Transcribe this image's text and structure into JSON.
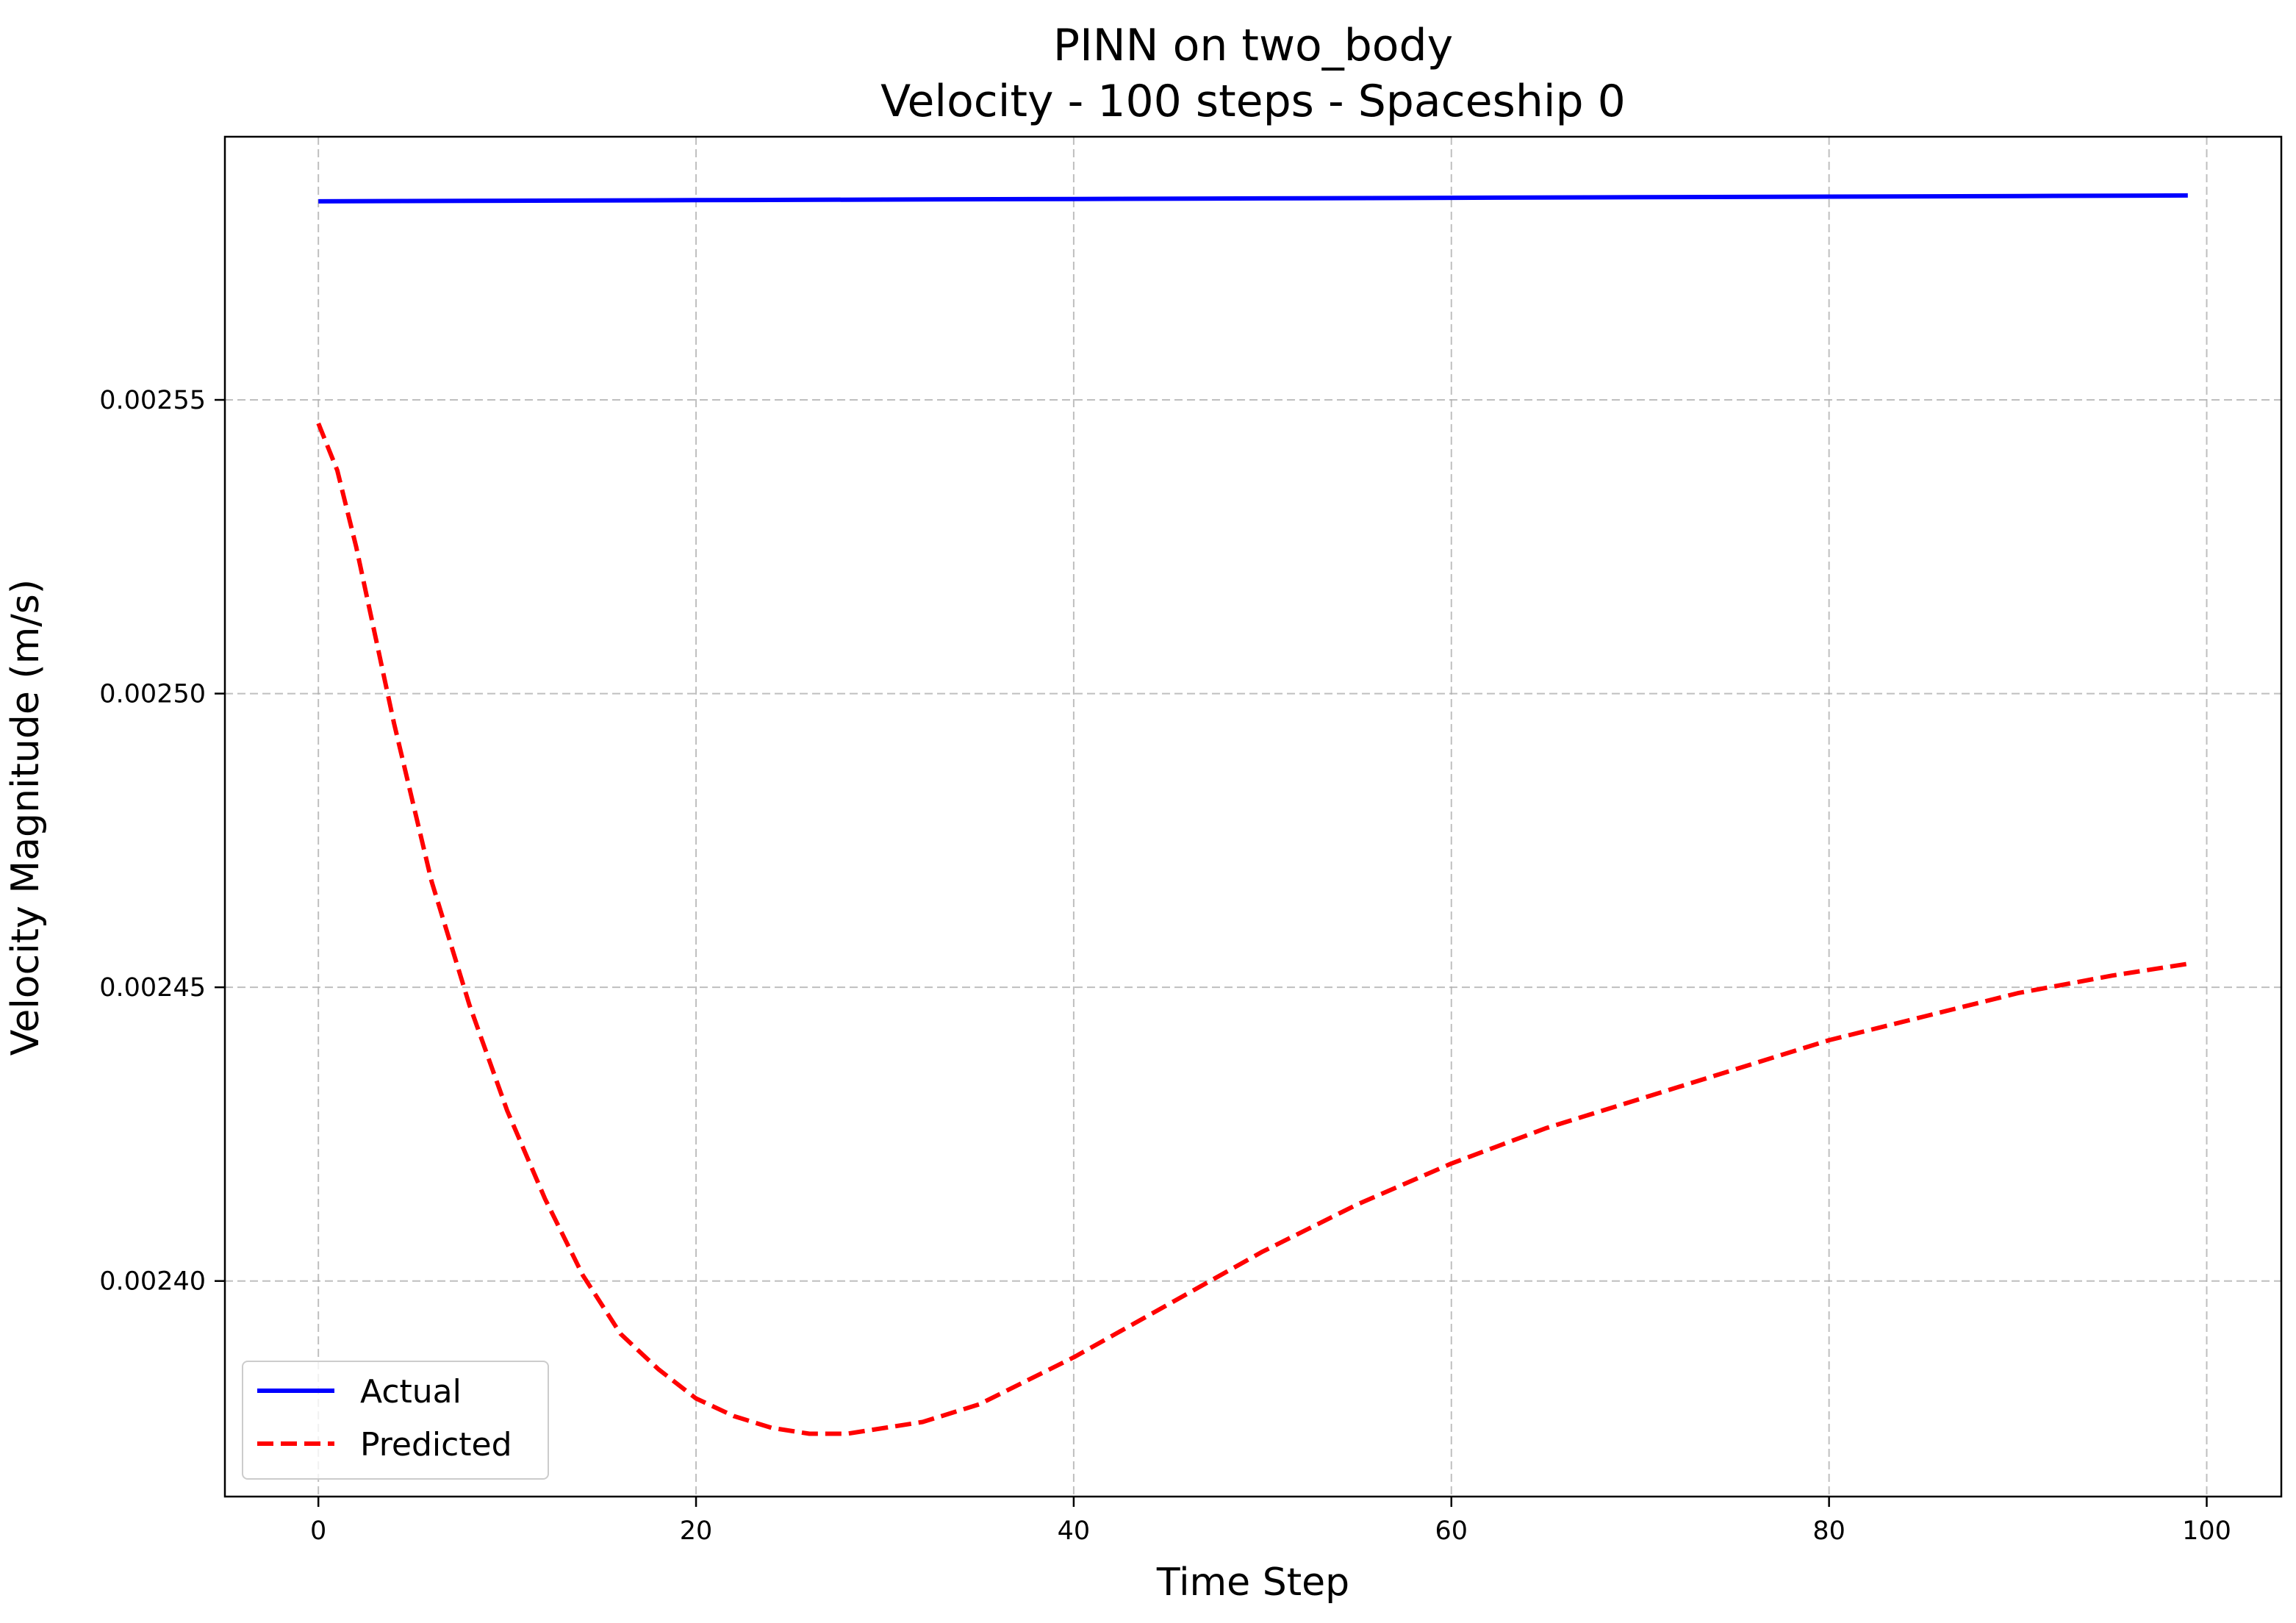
{
  "chart_data": {
    "type": "line",
    "title": "PINN on two_body",
    "subtitle": "Velocity - 100 steps - Spaceship 0",
    "xlabel": "Time Step",
    "ylabel": "Velocity Magnitude (m/s)",
    "xlim": [
      -4.95,
      103.95
    ],
    "ylim": [
      0.0023633,
      0.0025948
    ],
    "xticks": [
      0,
      20,
      40,
      60,
      80,
      100
    ],
    "xtick_labels": [
      "0",
      "20",
      "40",
      "60",
      "80",
      "100"
    ],
    "yticks": [
      0.0024,
      0.00245,
      0.0025,
      0.00255
    ],
    "ytick_labels": [
      "0.00240",
      "0.00245",
      "0.00250",
      "0.00255"
    ],
    "grid": true,
    "legend_position": "lower-left",
    "series": [
      {
        "name": "Actual",
        "color": "#0000ff",
        "style": "solid",
        "x": [
          0,
          10,
          20,
          30,
          40,
          50,
          60,
          70,
          80,
          90,
          99
        ],
        "y": [
          0.0025838,
          0.0025839,
          0.002584,
          0.0025841,
          0.0025842,
          0.0025843,
          0.0025844,
          0.0025845,
          0.0025846,
          0.0025847,
          0.0025848
        ]
      },
      {
        "name": "Predicted",
        "color": "#ff0000",
        "style": "dashed",
        "x": [
          0,
          1,
          2,
          3,
          4,
          6,
          8,
          10,
          12,
          14,
          16,
          18,
          20,
          22,
          24,
          26,
          28,
          30,
          32,
          35,
          40,
          45,
          50,
          55,
          60,
          65,
          70,
          75,
          80,
          85,
          90,
          95,
          99
        ],
        "y": [
          0.002546,
          0.002538,
          0.002525,
          0.00251,
          0.002495,
          0.002468,
          0.002447,
          0.002429,
          0.002414,
          0.002401,
          0.002391,
          0.002385,
          0.00238,
          0.002377,
          0.002375,
          0.002374,
          0.002374,
          0.002375,
          0.002376,
          0.002379,
          0.002387,
          0.002396,
          0.002405,
          0.002413,
          0.00242,
          0.002426,
          0.002431,
          0.002436,
          0.002441,
          0.002445,
          0.002449,
          0.002452,
          0.002454
        ]
      }
    ]
  }
}
